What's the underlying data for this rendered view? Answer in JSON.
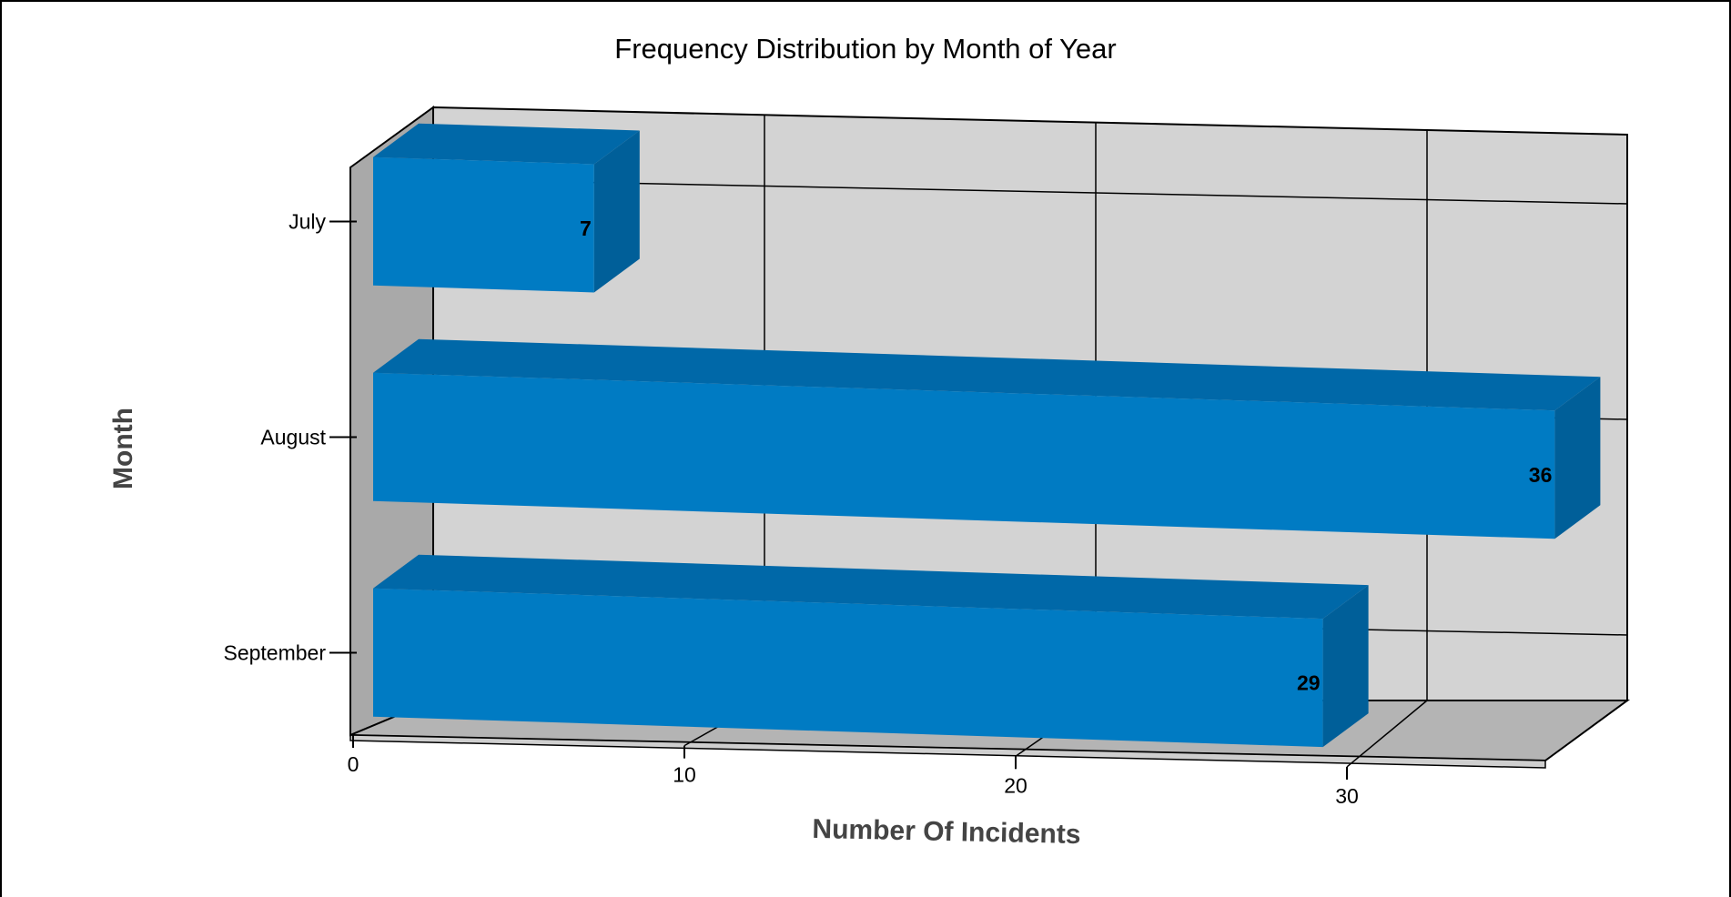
{
  "chart_data": {
    "type": "bar",
    "orientation": "horizontal",
    "style": "3d",
    "title": "Frequency Distribution by Month of Year",
    "xlabel": "Number Of Incidents",
    "ylabel": "Month",
    "categories": [
      "July",
      "August",
      "September"
    ],
    "values": [
      7,
      36,
      29
    ],
    "data_labels": [
      "7",
      "36",
      "29"
    ],
    "xlim": [
      0,
      36
    ],
    "x_ticks": [
      0,
      10,
      20,
      30
    ],
    "x_tick_labels": [
      "0",
      "10",
      "20",
      "30"
    ],
    "grid": true,
    "colors": {
      "bar_front": "#007BC3",
      "bar_top": "#0068A8",
      "bar_side": "#005F99",
      "back_wall": "#D3D3D3",
      "side_wall": "#A9A9A9",
      "floor": "#B4B4B4"
    }
  }
}
